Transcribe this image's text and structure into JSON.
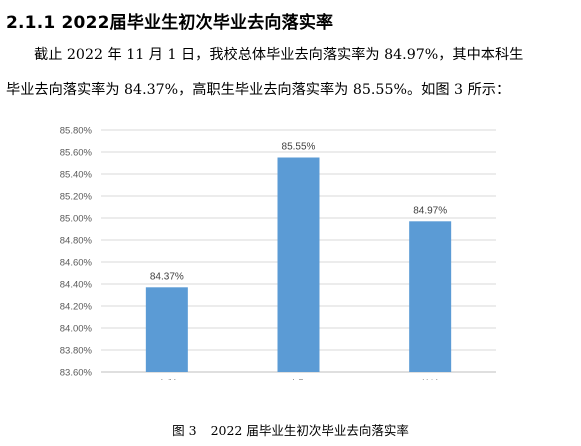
{
  "heading": "2.1.1 2022届毕业生初次毕业去向落实率",
  "paragraph": {
    "line1": "截止 2022 年 11 月 1 日，我校总体毕业去向落实率为 84.97%，其中本科生",
    "line2": "毕业去向落实率为 84.37%，高职生毕业去向落实率为 85.55%。如图 3 所示："
  },
  "caption": {
    "number": "图 3",
    "text": "2022 届毕业生初次毕业去向落实率"
  },
  "chart_data": {
    "type": "bar",
    "title": "",
    "xlabel": "",
    "ylabel": "",
    "categories": [
      "本科",
      "高职",
      "总计"
    ],
    "values": [
      84.37,
      85.55,
      84.97
    ],
    "data_labels": [
      "84.37%",
      "85.55%",
      "84.97%"
    ],
    "ylim": [
      83.6,
      85.8
    ],
    "yticks": [
      83.6,
      83.8,
      84.0,
      84.2,
      84.4,
      84.6,
      84.8,
      85.0,
      85.2,
      85.4,
      85.6,
      85.8
    ],
    "ytick_labels": [
      "83.60%",
      "83.80%",
      "84.00%",
      "84.20%",
      "84.40%",
      "84.60%",
      "84.80%",
      "85.00%",
      "85.20%",
      "85.40%",
      "85.60%",
      "85.80%"
    ],
    "grid": true,
    "legend": "none",
    "bar_color": "#5b9bd5",
    "grid_color": "#d9d9d9",
    "axis_color": "#bfbfbf",
    "label_color": "#595959"
  }
}
